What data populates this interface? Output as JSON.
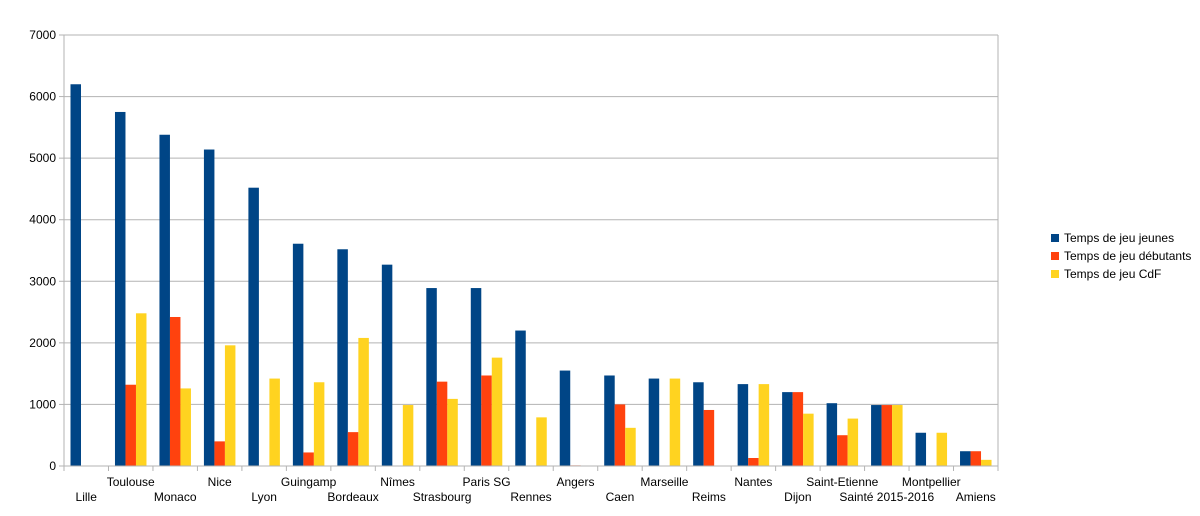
{
  "chart_data": {
    "type": "bar",
    "title": "",
    "xlabel": "",
    "ylabel": "",
    "ylim": [
      0,
      7000
    ],
    "yticks": [
      0,
      1000,
      2000,
      3000,
      4000,
      5000,
      6000,
      7000
    ],
    "grid": true,
    "legend_position": "right",
    "categories": [
      "Lille",
      "Toulouse",
      "Monaco",
      "Nice",
      "Lyon",
      "Guingamp",
      "Bordeaux",
      "Nîmes",
      "Strasbourg",
      "Paris SG",
      "Rennes",
      "Angers",
      "Caen",
      "Marseille",
      "Reims",
      "Nantes",
      "Dijon",
      "Saint-Etienne",
      "Sainté 2015-2016",
      "Montpellier",
      "Amiens"
    ],
    "series": [
      {
        "name": "Temps de jeu jeunes",
        "color": "#004586",
        "values": [
          6200,
          5750,
          5380,
          5140,
          4520,
          3610,
          3520,
          3270,
          2890,
          2890,
          2200,
          1550,
          1470,
          1420,
          1360,
          1330,
          1200,
          1020,
          990,
          540,
          240
        ]
      },
      {
        "name": "Temps de jeu débutants",
        "color": "#ff420e",
        "values": [
          0,
          1320,
          2420,
          400,
          0,
          220,
          550,
          0,
          1370,
          1470,
          0,
          10,
          1000,
          0,
          910,
          130,
          1200,
          500,
          990,
          0,
          240
        ]
      },
      {
        "name": "Temps de jeu CdF",
        "color": "#ffd320",
        "values": [
          0,
          2480,
          1260,
          1960,
          1420,
          1360,
          2080,
          990,
          1090,
          1760,
          790,
          0,
          620,
          1420,
          0,
          1330,
          850,
          770,
          990,
          540,
          100
        ]
      }
    ]
  }
}
